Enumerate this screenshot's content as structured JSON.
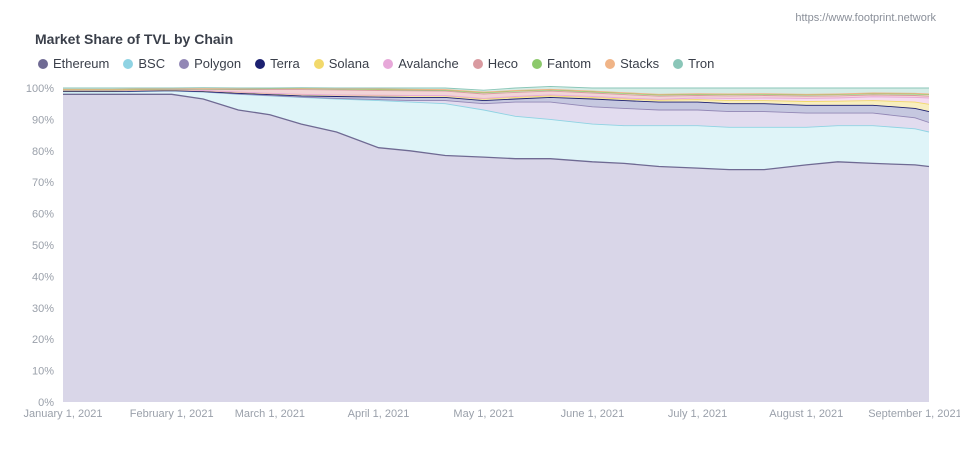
{
  "source_url": "https://www.footprint.network",
  "watermark": "Footprint",
  "chart_data": {
    "type": "area",
    "title": "Market Share of TVL by Chain",
    "stacked": true,
    "y_format": "percent",
    "ylim": [
      0,
      100
    ],
    "y_ticks": [
      "0%",
      "10%",
      "20%",
      "30%",
      "40%",
      "50%",
      "60%",
      "70%",
      "80%",
      "90%",
      "100%"
    ],
    "x_ticks": [
      "January 1, 2021",
      "February 1, 2021",
      "March 1, 2021",
      "April 1, 2021",
      "May 1, 2021",
      "June 1, 2021",
      "July 1, 2021",
      "August 1, 2021",
      "September 1, 2021"
    ],
    "legend_position": "top-left",
    "x": [
      "2021-01-01",
      "2021-01-15",
      "2021-02-01",
      "2021-02-10",
      "2021-02-20",
      "2021-03-01",
      "2021-03-10",
      "2021-03-20",
      "2021-04-01",
      "2021-04-10",
      "2021-04-20",
      "2021-05-01",
      "2021-05-10",
      "2021-05-20",
      "2021-06-01",
      "2021-06-10",
      "2021-06-20",
      "2021-07-01",
      "2021-07-10",
      "2021-07-20",
      "2021-08-01",
      "2021-08-10",
      "2021-08-20",
      "2021-09-01",
      "2021-09-05"
    ],
    "series": [
      {
        "name": "Ethereum",
        "color": "#6f6a93",
        "fill": "#d9d6e8",
        "values": [
          98,
          98,
          98,
          96.5,
          93,
          91.5,
          88.5,
          86,
          81,
          80,
          78.5,
          78,
          77.5,
          77.5,
          76.5,
          76,
          75,
          74.5,
          74,
          74,
          75.5,
          76.5,
          76,
          75.5,
          75
        ]
      },
      {
        "name": "BSC",
        "color": "#8fd3e3",
        "fill": "#dff4f8",
        "values": [
          0.8,
          0.8,
          1,
          2.2,
          5,
          6,
          8.5,
          10.5,
          15,
          15.5,
          16.5,
          15,
          13.5,
          12.5,
          12,
          12,
          13,
          13.5,
          13.5,
          13.5,
          12,
          11.5,
          12,
          11.5,
          11
        ]
      },
      {
        "name": "Polygon",
        "color": "#9287b5",
        "fill": "#e2dcef",
        "values": [
          0.1,
          0.1,
          0.1,
          0.1,
          0.1,
          0.1,
          0.1,
          0.2,
          0.3,
          0.5,
          1,
          2,
          4.5,
          5.5,
          5.5,
          5.5,
          5,
          5,
          5,
          5,
          4.5,
          4,
          4,
          3.5,
          3
        ]
      },
      {
        "name": "Terra",
        "color": "#1c2070",
        "fill": "#c6c8e0",
        "values": [
          0,
          0,
          0.1,
          0.1,
          0.2,
          0.3,
          0.4,
          0.6,
          0.8,
          1,
          1,
          1,
          1,
          1.5,
          2.5,
          2.5,
          2.5,
          2.5,
          2.5,
          2.5,
          2.5,
          2.5,
          2.5,
          3,
          3.5
        ]
      },
      {
        "name": "Solana",
        "color": "#f2d96b",
        "fill": "#f8eec0",
        "values": [
          0.2,
          0.2,
          0.2,
          0.2,
          0.3,
          0.3,
          0.4,
          0.4,
          0.5,
          0.5,
          0.5,
          0.5,
          0.5,
          0.5,
          0.5,
          0.5,
          0.6,
          0.8,
          1,
          1,
          1.2,
          1.3,
          1.5,
          2,
          2.3
        ]
      },
      {
        "name": "Avalanche",
        "color": "#e7a8d9",
        "fill": "#f5dcf0",
        "values": [
          0.1,
          0.1,
          0.1,
          0.1,
          0.1,
          0.1,
          0.1,
          0.1,
          0.1,
          0.1,
          0.1,
          0.2,
          0.3,
          0.3,
          0.3,
          0.3,
          0.3,
          0.5,
          0.7,
          0.8,
          1,
          1,
          1.2,
          1.5,
          2
        ]
      },
      {
        "name": "Heco",
        "color": "#d99aa0",
        "fill": "#f1d4d6",
        "values": [
          0.1,
          0.1,
          0.1,
          0.4,
          0.8,
          1.2,
          1.5,
          1.6,
          1.5,
          1.5,
          1.4,
          1.4,
          1.3,
          1.2,
          1.1,
          1.1,
          1.0,
          0.8,
          0.8,
          0.8,
          0.7,
          0.7,
          0.6,
          0.6,
          0.6
        ]
      },
      {
        "name": "Fantom",
        "color": "#8cc96b",
        "fill": "#dbeecf",
        "values": [
          0.1,
          0.1,
          0.1,
          0.1,
          0.2,
          0.3,
          0.3,
          0.3,
          0.3,
          0.3,
          0.3,
          0.4,
          0.4,
          0.4,
          0.4,
          0.4,
          0.4,
          0.4,
          0.4,
          0.4,
          0.4,
          0.4,
          0.4,
          0.5,
          0.5
        ]
      },
      {
        "name": "Stacks",
        "color": "#f0b487",
        "fill": "#f8e0cc",
        "values": [
          0.2,
          0.2,
          0.1,
          0.1,
          0.1,
          0.1,
          0.1,
          0.1,
          0.2,
          0.2,
          0.2,
          0.2,
          0.2,
          0.2,
          0.2,
          0.2,
          0.2,
          0.2,
          0.2,
          0.2,
          0.2,
          0.2,
          0.2,
          0.2,
          0.2
        ]
      },
      {
        "name": "Tron",
        "color": "#8ac6b8",
        "fill": "#d5ece6",
        "values": [
          0.4,
          0.4,
          0.2,
          0.3,
          0.2,
          0.1,
          0.2,
          0.2,
          0.3,
          0.4,
          0.5,
          0.6,
          0.8,
          0.9,
          1,
          1.5,
          2,
          1.8,
          1.9,
          1.8,
          2,
          1.9,
          1.6,
          1.7,
          1.9
        ]
      }
    ]
  }
}
